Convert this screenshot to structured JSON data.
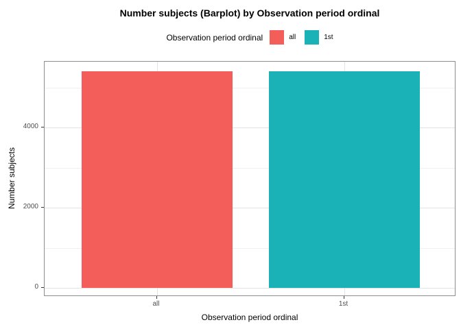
{
  "title": "Number subjects (Barplot) by Observation period ordinal",
  "legend": {
    "title": "Observation period ordinal",
    "items": [
      {
        "label": "all",
        "color": "#F35E5B"
      },
      {
        "label": "1st",
        "color": "#1AB2B6"
      }
    ]
  },
  "chart_data": {
    "type": "bar",
    "title": "Number subjects (Barplot) by Observation period ordinal",
    "categories": [
      "all",
      "1st"
    ],
    "values": [
      5400,
      5400
    ],
    "series_name": "Observation period ordinal",
    "colors": [
      "#F35E5B",
      "#1AB2B6"
    ],
    "xlabel": "Observation period ordinal",
    "ylabel": "Number subjects",
    "y_major_ticks": [
      0,
      2000,
      4000
    ],
    "y_minor_ticks": [
      1000,
      3000,
      5000
    ],
    "ylim": [
      0,
      5650
    ],
    "grid": true,
    "legend_position": "top"
  },
  "colors": {
    "background": "#FFFFFF",
    "panel_border": "#8C8C8C",
    "grid_major": "#E3E3E3",
    "grid_minor": "#F0F0F0",
    "tick_label": "#4D4D4D"
  }
}
